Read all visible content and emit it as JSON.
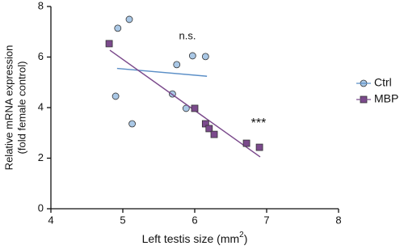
{
  "chart_data": {
    "type": "scatter",
    "xlabel": {
      "text": "Left testis size (mm",
      "sup": "2",
      "tail": ")"
    },
    "ylabel": [
      "Relative mRNA expression",
      "(fold female control)"
    ],
    "xlim": [
      4,
      8
    ],
    "xticks": [
      4,
      5,
      6,
      7,
      8
    ],
    "ylim": [
      0,
      8
    ],
    "yticks": [
      0,
      2,
      4,
      6,
      8
    ],
    "grid": false,
    "legend": "right",
    "series": [
      {
        "name": "Ctrl",
        "color": "#aac8e6",
        "line_color": "#5b8fc7",
        "marker": "circle",
        "x": [
          4.93,
          5.09,
          5.75,
          5.97,
          6.15,
          4.9,
          5.13,
          5.69,
          5.88
        ],
        "values": [
          7.14,
          7.49,
          5.7,
          6.05,
          6.02,
          4.45,
          3.36,
          4.54,
          3.97
        ],
        "fit_x": [
          4.92,
          6.17
        ],
        "fit_y": [
          5.55,
          5.24
        ],
        "annotation": "n.s."
      },
      {
        "name": "MBP",
        "color": "#7b4a8c",
        "line_color": "#7b4a8c",
        "marker": "square",
        "x": [
          4.81,
          6.0,
          6.15,
          6.2,
          6.27,
          6.72,
          6.9
        ],
        "values": [
          6.53,
          3.97,
          3.36,
          3.17,
          2.94,
          2.59,
          2.43
        ],
        "fit_x": [
          4.82,
          6.91
        ],
        "fit_y": [
          6.27,
          2.05
        ],
        "annotation": "***"
      }
    ]
  }
}
